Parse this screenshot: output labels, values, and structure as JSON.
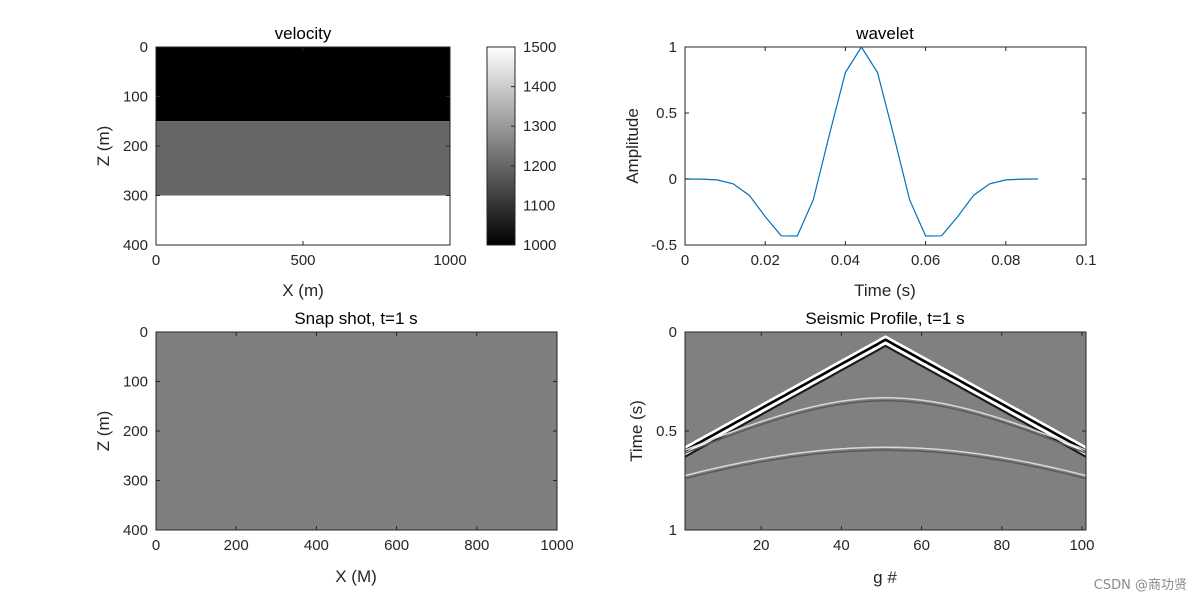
{
  "chart_data": [
    {
      "id": "velocity",
      "type": "heatmap",
      "title": "velocity",
      "xlabel": "X (m)",
      "ylabel": "Z (m)",
      "xlim": [
        0,
        1000
      ],
      "ylim": [
        0,
        400
      ],
      "y_reversed": true,
      "xticks": [
        0,
        500,
        1000
      ],
      "yticks": [
        0,
        100,
        200,
        300,
        400
      ],
      "layers": [
        {
          "z_top": 0,
          "z_bottom": 150,
          "value": 1000
        },
        {
          "z_top": 150,
          "z_bottom": 300,
          "value": 1200
        },
        {
          "z_top": 300,
          "z_bottom": 400,
          "value": 1500
        }
      ],
      "colorbar": {
        "range": [
          1000,
          1500
        ],
        "ticks": [
          1000,
          1100,
          1200,
          1300,
          1400,
          1500
        ],
        "colormap": "gray"
      }
    },
    {
      "id": "wavelet",
      "type": "line",
      "title": "wavelet",
      "xlabel": "Time (s)",
      "ylabel": "Amplitude",
      "xlim": [
        0,
        0.1
      ],
      "ylim": [
        -0.5,
        1
      ],
      "xticks": [
        0,
        0.02,
        0.04,
        0.06,
        0.08,
        0.1
      ],
      "yticks": [
        -0.5,
        0,
        0.5,
        1
      ],
      "color": "#0072BD",
      "x": [
        0,
        0.004,
        0.008,
        0.012,
        0.016,
        0.02,
        0.024,
        0.028,
        0.032,
        0.036,
        0.04,
        0.044,
        0.048,
        0.052,
        0.056,
        0.06,
        0.064,
        0.068,
        0.072,
        0.076,
        0.08,
        0.084,
        0.088
      ],
      "y": [
        0,
        -0.001,
        -0.007,
        -0.036,
        -0.123,
        -0.285,
        -0.43,
        -0.432,
        -0.157,
        0.336,
        0.807,
        1.0,
        0.807,
        0.336,
        -0.157,
        -0.432,
        -0.43,
        -0.285,
        -0.123,
        -0.036,
        -0.007,
        -0.001,
        0
      ]
    },
    {
      "id": "snapshot",
      "type": "heatmap",
      "title": "Snap shot, t=1 s",
      "xlabel": "X (M)",
      "ylabel": "Z (m)",
      "xlim": [
        0,
        1000
      ],
      "ylim": [
        0,
        400
      ],
      "y_reversed": true,
      "xticks": [
        0,
        200,
        400,
        600,
        800,
        1000
      ],
      "yticks": [
        0,
        100,
        200,
        300,
        400
      ],
      "fill_color": "#7f7f7f"
    },
    {
      "id": "profile",
      "type": "heatmap",
      "title": "Seismic Profile, t=1 s",
      "xlabel": "g #",
      "ylabel": "Time (s)",
      "xlim": [
        1,
        101
      ],
      "ylim": [
        0,
        1
      ],
      "y_reversed": true,
      "xticks": [
        20,
        40,
        60,
        80,
        100
      ],
      "yticks": [
        0,
        0.5,
        1
      ],
      "source_trace": 51,
      "events": [
        {
          "kind": "direct",
          "t0": 0.04,
          "slope_per_trace": 0.0112,
          "strength": "strong"
        },
        {
          "kind": "reflection",
          "t0": 0.34,
          "v": 1000,
          "strength": "weak"
        },
        {
          "kind": "reflection",
          "t0": 0.59,
          "v": 1150,
          "strength": "weak"
        }
      ]
    }
  ],
  "watermark": "CSDN @商功贤"
}
